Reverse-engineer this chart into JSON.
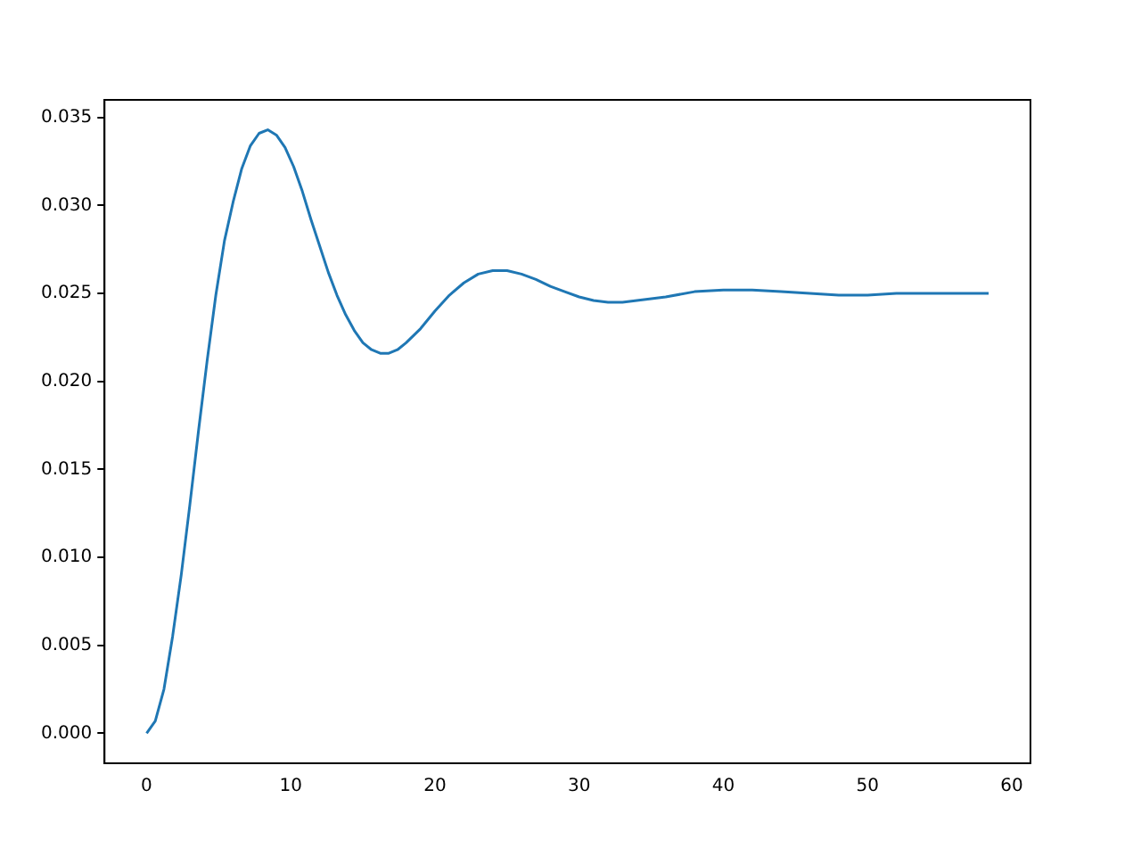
{
  "chart_data": {
    "type": "line",
    "grid": false,
    "legend": false,
    "marker": "none",
    "line_style": "solid",
    "xlim": [
      -2.92,
      61.3
    ],
    "xticks": [
      0,
      10,
      20,
      30,
      40,
      50,
      60
    ],
    "ylim": [
      -0.0017,
      0.036
    ],
    "yticks": [
      {
        "value": 0,
        "label": "0.000"
      },
      {
        "value": 0.005,
        "label": "0.005"
      },
      {
        "value": 0.01,
        "label": "0.010"
      },
      {
        "value": 0.015,
        "label": "0.015"
      },
      {
        "value": 0.02,
        "label": "0.020"
      },
      {
        "value": 0.025,
        "label": "0.025"
      },
      {
        "value": 0.03,
        "label": "0.030"
      },
      {
        "value": 0.035,
        "label": "0.035"
      }
    ],
    "series": [
      {
        "color": "#1f77b4",
        "x": [
          0,
          0.6,
          1.2,
          1.8,
          2.4,
          3.0,
          3.6,
          4.2,
          4.8,
          5.4,
          6.0,
          6.6,
          7.2,
          7.8,
          8.4,
          9.0,
          9.6,
          10.2,
          10.8,
          11.4,
          12.0,
          12.6,
          13.2,
          13.8,
          14.4,
          15.0,
          15.6,
          16.2,
          16.8,
          17.4,
          18.0,
          19,
          20,
          21,
          22,
          23,
          24,
          25,
          26,
          27,
          28,
          29,
          30,
          31,
          32,
          33,
          34,
          36,
          38,
          40,
          42,
          44,
          46,
          48,
          50,
          52,
          54,
          56,
          58.4
        ],
        "values": [
          0,
          0.0007,
          0.0025,
          0.0055,
          0.009,
          0.013,
          0.0172,
          0.0212,
          0.0249,
          0.028,
          0.0302,
          0.0321,
          0.0334,
          0.0341,
          0.0343,
          0.034,
          0.0333,
          0.0322,
          0.0308,
          0.0292,
          0.0277,
          0.0262,
          0.0249,
          0.0238,
          0.0229,
          0.0222,
          0.0218,
          0.0216,
          0.0216,
          0.0218,
          0.0222,
          0.023,
          0.024,
          0.0249,
          0.0256,
          0.0261,
          0.0263,
          0.0263,
          0.0261,
          0.0258,
          0.0254,
          0.0251,
          0.0248,
          0.0246,
          0.0245,
          0.0245,
          0.0246,
          0.0248,
          0.0251,
          0.0252,
          0.0252,
          0.0251,
          0.025,
          0.0249,
          0.0249,
          0.025,
          0.025,
          0.025,
          0.025
        ]
      }
    ]
  }
}
